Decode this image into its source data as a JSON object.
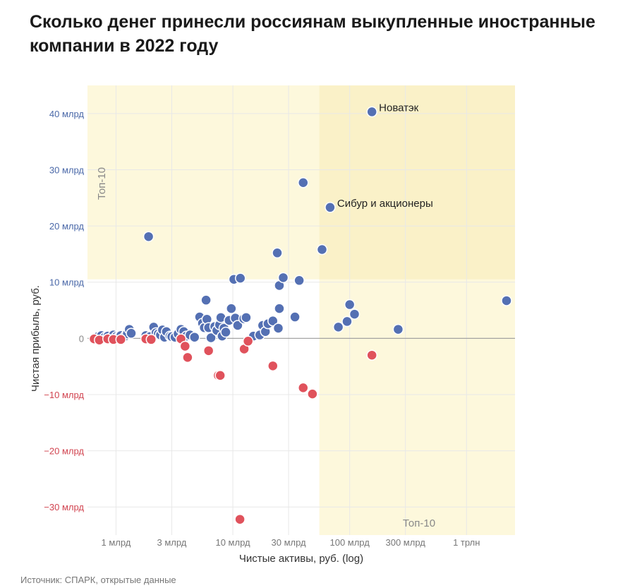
{
  "title": "Сколько денег принесли россиянам выкупленные иностранные компании в 2022 году",
  "source": "Источник: СПАРК, открытые данные",
  "chart_data": {
    "type": "scatter",
    "xlabel": "Чистые активы, руб. (log)",
    "ylabel": "Чистая прибыль, руб.",
    "x_scale": "log",
    "xlim_bn": [
      0.57,
      2600
    ],
    "ylim_bn": [
      -35,
      45
    ],
    "x_ticks": [
      {
        "value": 1,
        "label": "1 млрд"
      },
      {
        "value": 3,
        "label": "3 млрд"
      },
      {
        "value": 10,
        "label": "10 млрд"
      },
      {
        "value": 30,
        "label": "30 млрд"
      },
      {
        "value": 100,
        "label": "100 млрд"
      },
      {
        "value": 300,
        "label": "300 млрд"
      },
      {
        "value": 1000,
        "label": "1 трлн"
      }
    ],
    "y_ticks": [
      {
        "value": 40,
        "label": "40 млрд"
      },
      {
        "value": 30,
        "label": "30 млрд"
      },
      {
        "value": 20,
        "label": "20 млрд"
      },
      {
        "value": 10,
        "label": "10 млрд"
      },
      {
        "value": 0,
        "label": "0"
      },
      {
        "value": -10,
        "label": "−10 млрд"
      },
      {
        "value": -20,
        "label": "−20 млрд"
      },
      {
        "value": -30,
        "label": "−30 млрд"
      }
    ],
    "top10_zones": {
      "label": "Топ-10",
      "profit_threshold_bn": 10.5,
      "assets_threshold_bn": 55
    },
    "colors": {
      "profit": "#5470b3",
      "loss": "#e0525c",
      "zone": "#fdf8dc",
      "zone_overlap": "#faf1c8",
      "grid": "#e8e8e8",
      "zero_line": "#999999",
      "tick_positive": "#4a68a8",
      "tick_negative": "#d14450",
      "tick_neutral": "#888888"
    },
    "annotations": [
      {
        "text": "Новатэк",
        "x": 155,
        "y": 40.3
      },
      {
        "text": "Сибур и акционеры",
        "x": 68,
        "y": 23.3
      }
    ],
    "series": [
      {
        "name": "profit",
        "points": [
          [
            0.7,
            0.3
          ],
          [
            0.75,
            0.5
          ],
          [
            0.8,
            0.2
          ],
          [
            0.85,
            0.4
          ],
          [
            0.9,
            0.1
          ],
          [
            0.95,
            0.6
          ],
          [
            1.0,
            0.3
          ],
          [
            1.05,
            0.2
          ],
          [
            1.1,
            0.5
          ],
          [
            1.2,
            0.4
          ],
          [
            1.25,
            0.8
          ],
          [
            1.3,
            1.6
          ],
          [
            1.35,
            0.9
          ],
          [
            1.9,
            18.1
          ],
          [
            1.8,
            0.5
          ],
          [
            1.95,
            0.3
          ],
          [
            2.1,
            2.0
          ],
          [
            2.2,
            1.0
          ],
          [
            2.3,
            0.8
          ],
          [
            2.4,
            0.6
          ],
          [
            2.5,
            1.5
          ],
          [
            2.6,
            0.2
          ],
          [
            2.7,
            1.2
          ],
          [
            2.9,
            0.4
          ],
          [
            3.0,
            0.3
          ],
          [
            3.2,
            0.2
          ],
          [
            3.4,
            0.8
          ],
          [
            3.6,
            1.6
          ],
          [
            3.8,
            1.2
          ],
          [
            4.0,
            0.4
          ],
          [
            4.3,
            0.6
          ],
          [
            4.7,
            0.2
          ],
          [
            5.2,
            3.8
          ],
          [
            5.5,
            2.7
          ],
          [
            5.7,
            1.9
          ],
          [
            5.9,
            6.8
          ],
          [
            6.0,
            3.4
          ],
          [
            6.2,
            1.9
          ],
          [
            6.5,
            0.1
          ],
          [
            7.0,
            2.1
          ],
          [
            7.3,
            1.4
          ],
          [
            7.7,
            2.4
          ],
          [
            7.9,
            3.7
          ],
          [
            8.1,
            0.4
          ],
          [
            8.4,
            1.8
          ],
          [
            8.7,
            1.1
          ],
          [
            9.3,
            3.2
          ],
          [
            9.7,
            5.3
          ],
          [
            10.2,
            10.5
          ],
          [
            10.5,
            3.6
          ],
          [
            11.0,
            2.3
          ],
          [
            11.6,
            10.7
          ],
          [
            12.4,
            3.5
          ],
          [
            13.0,
            3.7
          ],
          [
            15.0,
            0.4
          ],
          [
            17.0,
            0.6
          ],
          [
            18.0,
            2.3
          ],
          [
            19.0,
            1.2
          ],
          [
            20.0,
            2.6
          ],
          [
            22.0,
            3.1
          ],
          [
            24.0,
            15.2
          ],
          [
            25.0,
            9.4
          ],
          [
            25.0,
            5.3
          ],
          [
            24.5,
            1.8
          ],
          [
            27.0,
            10.8
          ],
          [
            34.0,
            3.8
          ],
          [
            37.0,
            10.3
          ],
          [
            40.0,
            27.7
          ],
          [
            58.0,
            15.8
          ],
          [
            68.0,
            23.3
          ],
          [
            80.0,
            2.0
          ],
          [
            95.0,
            3.0
          ],
          [
            100.0,
            6.0
          ],
          [
            110.0,
            4.3
          ],
          [
            155.0,
            40.3
          ],
          [
            260.0,
            1.6
          ],
          [
            2200.0,
            6.7
          ]
        ]
      },
      {
        "name": "loss",
        "points": [
          [
            0.65,
            -0.1
          ],
          [
            0.72,
            -0.3
          ],
          [
            0.85,
            -0.1
          ],
          [
            0.95,
            -0.2
          ],
          [
            1.1,
            -0.2
          ],
          [
            1.8,
            -0.1
          ],
          [
            2.0,
            -0.2
          ],
          [
            3.6,
            -0.1
          ],
          [
            3.9,
            -1.4
          ],
          [
            4.1,
            -3.4
          ],
          [
            6.2,
            -2.2
          ],
          [
            7.5,
            -6.6
          ],
          [
            7.8,
            -6.6
          ],
          [
            11.5,
            -32.2
          ],
          [
            12.5,
            -1.9
          ],
          [
            13.5,
            -0.5
          ],
          [
            22.0,
            -4.9
          ],
          [
            40.0,
            -8.8
          ],
          [
            48.0,
            -9.9
          ],
          [
            155.0,
            -3.0
          ]
        ]
      }
    ]
  }
}
